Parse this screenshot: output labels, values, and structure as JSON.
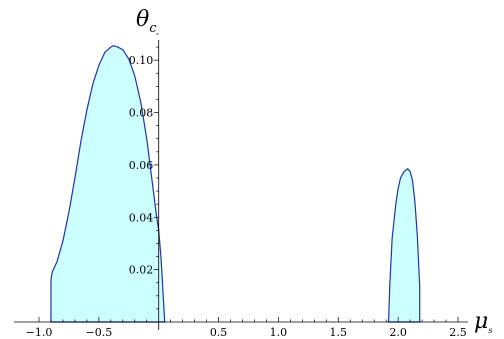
{
  "chart_data": {
    "type": "area",
    "title": "",
    "xlabel": "μ",
    "xlabel_subscript": "s",
    "ylabel": "θ",
    "ylabel_subscript": "c",
    "xlim": [
      -1.0,
      2.5
    ],
    "ylim": [
      0.0,
      0.11
    ],
    "xticks": [
      -1.0,
      -0.5,
      0.5,
      1.0,
      1.5,
      2.0,
      2.5
    ],
    "xtick_labels": [
      "−1.0",
      "−0.5",
      "0.5",
      "1.0",
      "1.5",
      "2.0",
      "2.5"
    ],
    "yticks": [
      0.02,
      0.04,
      0.06,
      0.08,
      0.1
    ],
    "ytick_labels": [
      "0.02",
      "0.04",
      "0.06",
      "0.08",
      "0.10"
    ],
    "grid": false,
    "fill_color": "#ccffff",
    "line_color": "#2233aa",
    "series": [
      {
        "x": [
          -0.9,
          -0.9,
          -0.89,
          -0.87,
          -0.85,
          -0.8,
          -0.75,
          -0.7,
          -0.65,
          -0.6,
          -0.55,
          -0.5,
          -0.45,
          -0.4,
          -0.38,
          -0.35,
          -0.3,
          -0.25,
          -0.2,
          -0.15,
          -0.1,
          -0.05,
          -0.02,
          0.0,
          0.02,
          0.04,
          0.05
        ],
        "y": [
          0.0,
          0.016,
          0.019,
          0.021,
          0.023,
          0.031,
          0.042,
          0.055,
          0.069,
          0.081,
          0.091,
          0.098,
          0.103,
          0.105,
          0.1055,
          0.1052,
          0.104,
          0.1005,
          0.094,
          0.084,
          0.07,
          0.052,
          0.041,
          0.035,
          0.024,
          0.008,
          0.0
        ]
      },
      {
        "x": [
          1.92,
          1.93,
          1.95,
          1.98,
          2.0,
          2.02,
          2.05,
          2.08,
          2.1,
          2.12,
          2.14,
          2.16,
          2.18,
          2.18
        ],
        "y": [
          0.0,
          0.014,
          0.032,
          0.045,
          0.051,
          0.055,
          0.0575,
          0.0585,
          0.0575,
          0.054,
          0.046,
          0.033,
          0.014,
          0.0
        ]
      }
    ]
  }
}
